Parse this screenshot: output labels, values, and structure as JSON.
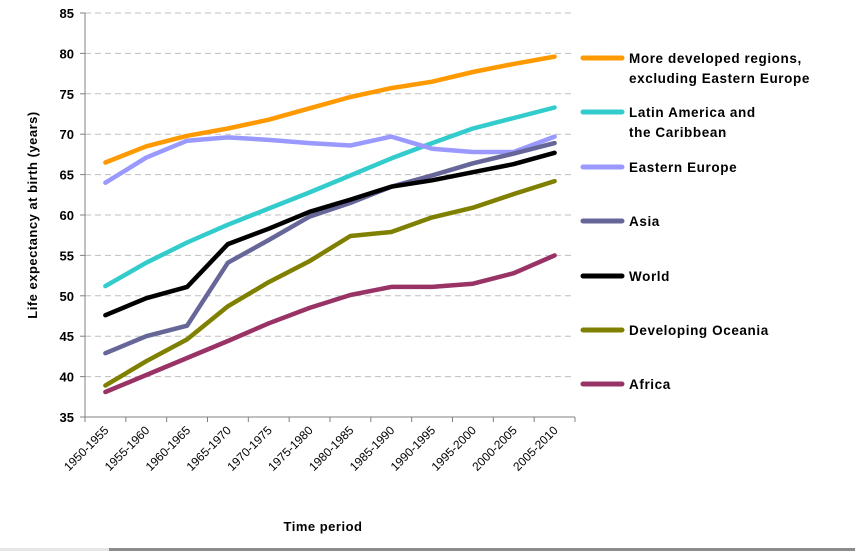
{
  "chart_data": {
    "type": "line",
    "title": "",
    "xlabel": "Time period",
    "ylabel": "Life expectancy at birth (years)",
    "ylim": [
      35,
      85
    ],
    "yticks": [
      35,
      40,
      45,
      50,
      55,
      60,
      65,
      70,
      75,
      80,
      85
    ],
    "grid": "horizontal-dashed",
    "legend_position": "right",
    "categories": [
      "1950-1955",
      "1955-1960",
      "1960-1965",
      "1965-1970",
      "1970-1975",
      "1975-1980",
      "1980-1985",
      "1985-1990",
      "1990-1995",
      "1995-2000",
      "2000-2005",
      "2005-2010"
    ],
    "series": [
      {
        "name": "More developed regions, excluding Eastern Europe",
        "legend_lines": [
          "More developed regions,",
          "excluding Eastern Europe"
        ],
        "color": "#FF9900",
        "values": [
          66.5,
          68.5,
          69.8,
          70.7,
          71.8,
          73.2,
          74.6,
          75.7,
          76.5,
          77.7,
          78.7,
          79.6
        ]
      },
      {
        "name": "Latin America and the Caribbean",
        "legend_lines": [
          "Latin America and",
          "the Caribbean"
        ],
        "color": "#33CCCC",
        "values": [
          51.2,
          54.1,
          56.6,
          58.8,
          60.8,
          62.8,
          64.9,
          67.0,
          68.9,
          70.7,
          72.0,
          73.3
        ]
      },
      {
        "name": "Eastern Europe",
        "legend_lines": [
          "Eastern Europe"
        ],
        "color": "#9999FF",
        "values": [
          64.0,
          67.1,
          69.2,
          69.6,
          69.3,
          68.9,
          68.6,
          69.7,
          68.2,
          67.8,
          67.8,
          69.7
        ]
      },
      {
        "name": "Asia",
        "legend_lines": [
          "Asia"
        ],
        "color": "#666699",
        "values": [
          42.9,
          45.0,
          46.3,
          54.1,
          56.9,
          59.8,
          61.5,
          63.5,
          64.9,
          66.4,
          67.6,
          68.9
        ]
      },
      {
        "name": "World",
        "legend_lines": [
          "World"
        ],
        "color": "#000000",
        "values": [
          47.6,
          49.7,
          51.1,
          56.4,
          58.3,
          60.4,
          61.9,
          63.5,
          64.3,
          65.3,
          66.3,
          67.7
        ]
      },
      {
        "name": "Developing Oceania",
        "legend_lines": [
          "Developing Oceania"
        ],
        "color": "#808000",
        "values": [
          38.9,
          41.9,
          44.6,
          48.7,
          51.7,
          54.3,
          57.4,
          57.9,
          59.7,
          60.9,
          62.6,
          64.2
        ]
      },
      {
        "name": "Africa",
        "legend_lines": [
          "Africa"
        ],
        "color": "#993366",
        "values": [
          38.1,
          40.2,
          42.3,
          44.4,
          46.6,
          48.5,
          50.1,
          51.1,
          51.1,
          51.5,
          52.8,
          55.0
        ]
      }
    ]
  }
}
